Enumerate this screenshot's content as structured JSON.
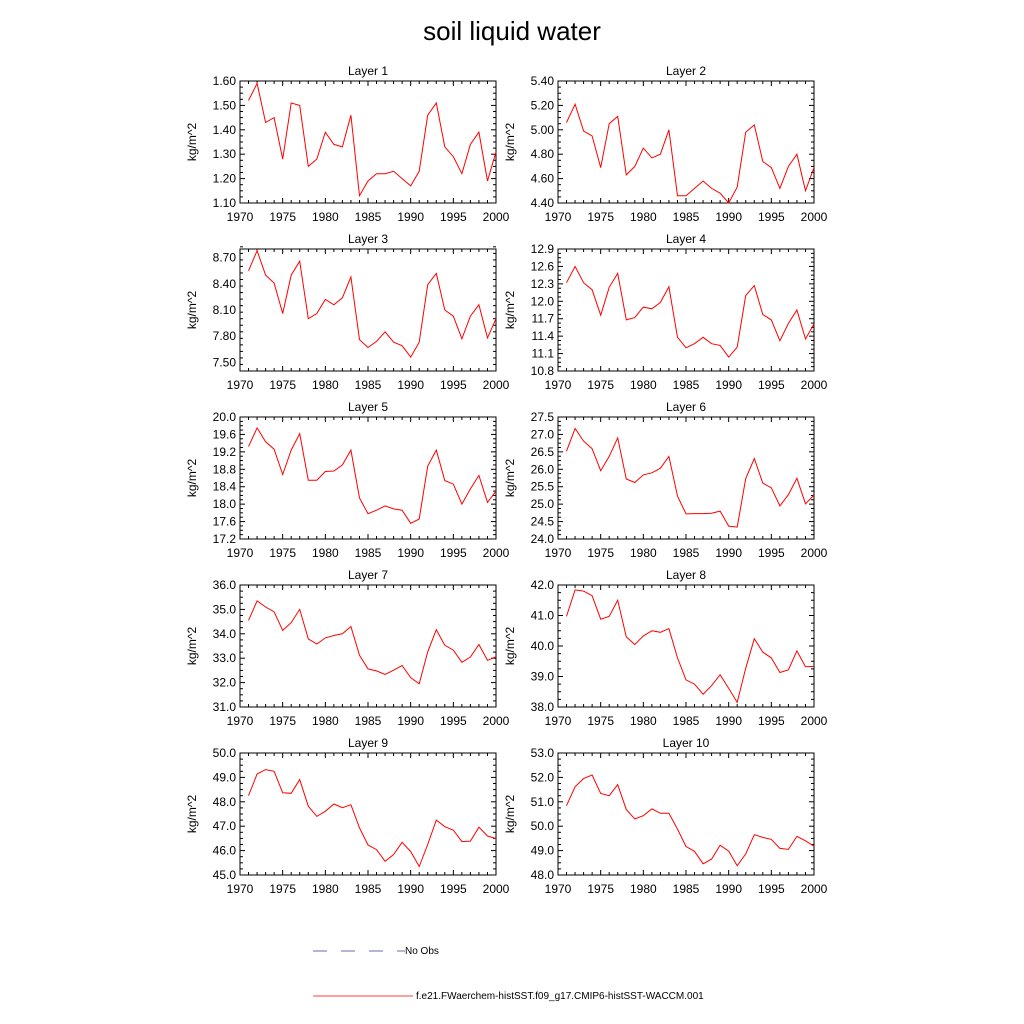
{
  "title": "soil liquid water",
  "colors": {
    "model_line": "#ff0000",
    "obs_line": "#3a3aa0",
    "axis": "#000000"
  },
  "legend": [
    {
      "label": "No Obs",
      "style": "dashed",
      "color": "#3a3aa0"
    },
    {
      "label": "f.e21.FWaerchem-histSST.f09_g17.CMIP6-histSST-WACCM.001",
      "style": "solid",
      "color": "#ff0000"
    }
  ],
  "chart_data": [
    {
      "type": "line",
      "title": "Layer 1",
      "ylabel": "kg/m^2",
      "xlim": [
        1970,
        2000
      ],
      "ylim": [
        1.1,
        1.6
      ],
      "xticks": [
        1970,
        1975,
        1980,
        1985,
        1990,
        1995,
        2000
      ],
      "yticks": [
        "1.10",
        "1.20",
        "1.30",
        "1.40",
        "1.50",
        "1.60"
      ],
      "series": [
        {
          "x": [
            1971,
            1972,
            1973,
            1974,
            1975,
            1976,
            1977,
            1978,
            1979,
            1980,
            1981,
            1982,
            1983,
            1984,
            1985,
            1986,
            1987,
            1988,
            1989,
            1990,
            1991,
            1992,
            1993,
            1994,
            1995,
            1996,
            1997,
            1998,
            1999,
            2000
          ],
          "values": [
            1.52,
            1.59,
            1.43,
            1.45,
            1.28,
            1.51,
            1.5,
            1.25,
            1.28,
            1.39,
            1.34,
            1.33,
            1.46,
            1.13,
            1.19,
            1.22,
            1.22,
            1.23,
            1.2,
            1.17,
            1.23,
            1.46,
            1.51,
            1.33,
            1.29,
            1.22,
            1.34,
            1.39,
            1.19,
            1.31
          ]
        }
      ]
    },
    {
      "type": "line",
      "title": "Layer 2",
      "ylabel": "kg/m^2",
      "xlim": [
        1970,
        2000
      ],
      "ylim": [
        4.4,
        5.4
      ],
      "xticks": [
        1970,
        1975,
        1980,
        1985,
        1990,
        1995,
        2000
      ],
      "yticks": [
        "4.40",
        "4.60",
        "4.80",
        "5.00",
        "5.20",
        "5.40"
      ],
      "series": [
        {
          "x": [
            1971,
            1972,
            1973,
            1974,
            1975,
            1976,
            1977,
            1978,
            1979,
            1980,
            1981,
            1982,
            1983,
            1984,
            1985,
            1986,
            1987,
            1988,
            1989,
            1990,
            1991,
            1992,
            1993,
            1994,
            1995,
            1996,
            1997,
            1998,
            1999,
            2000
          ],
          "values": [
            5.06,
            5.21,
            4.99,
            4.95,
            4.69,
            5.05,
            5.11,
            4.63,
            4.7,
            4.85,
            4.77,
            4.8,
            5.0,
            4.46,
            4.46,
            4.52,
            4.58,
            4.52,
            4.48,
            4.4,
            4.53,
            4.98,
            5.04,
            4.74,
            4.69,
            4.52,
            4.7,
            4.8,
            4.5,
            4.69
          ]
        }
      ]
    },
    {
      "type": "line",
      "title": "Layer 3",
      "ylabel": "kg/m^2",
      "xlim": [
        1970,
        2000
      ],
      "ylim": [
        7.4,
        8.8
      ],
      "xticks": [
        1970,
        1975,
        1980,
        1985,
        1990,
        1995,
        2000
      ],
      "yticks": [
        "7.50",
        "7.80",
        "8.10",
        "8.40",
        "8.70"
      ],
      "series": [
        {
          "x": [
            1971,
            1972,
            1973,
            1974,
            1975,
            1976,
            1977,
            1978,
            1979,
            1980,
            1981,
            1982,
            1983,
            1984,
            1985,
            1986,
            1987,
            1988,
            1989,
            1990,
            1991,
            1992,
            1993,
            1994,
            1995,
            1996,
            1997,
            1998,
            1999,
            2000
          ],
          "values": [
            8.55,
            8.78,
            8.5,
            8.41,
            8.06,
            8.5,
            8.66,
            8.0,
            8.06,
            8.22,
            8.16,
            8.24,
            8.48,
            7.76,
            7.67,
            7.74,
            7.85,
            7.73,
            7.69,
            7.56,
            7.73,
            8.39,
            8.52,
            8.1,
            8.03,
            7.77,
            8.03,
            8.16,
            7.78,
            8.0
          ]
        }
      ]
    },
    {
      "type": "line",
      "title": "Layer 4",
      "ylabel": "kg/m^2",
      "xlim": [
        1970,
        2000
      ],
      "ylim": [
        10.8,
        12.9
      ],
      "xticks": [
        1970,
        1975,
        1980,
        1985,
        1990,
        1995,
        2000
      ],
      "yticks": [
        "10.8",
        "11.1",
        "11.4",
        "11.7",
        "12.0",
        "12.3",
        "12.6",
        "12.9"
      ],
      "series": [
        {
          "x": [
            1971,
            1972,
            1973,
            1974,
            1975,
            1976,
            1977,
            1978,
            1979,
            1980,
            1981,
            1982,
            1983,
            1984,
            1985,
            1986,
            1987,
            1988,
            1989,
            1990,
            1991,
            1992,
            1993,
            1994,
            1995,
            1996,
            1997,
            1998,
            1999,
            2000
          ],
          "values": [
            12.32,
            12.6,
            12.32,
            12.2,
            11.76,
            12.24,
            12.48,
            11.68,
            11.72,
            11.9,
            11.87,
            11.98,
            12.25,
            11.38,
            11.2,
            11.27,
            11.38,
            11.27,
            11.24,
            11.04,
            11.21,
            12.1,
            12.27,
            11.77,
            11.68,
            11.32,
            11.62,
            11.85,
            11.35,
            11.61
          ]
        }
      ]
    },
    {
      "type": "line",
      "title": "Layer 5",
      "ylabel": "kg/m^2",
      "xlim": [
        1970,
        2000
      ],
      "ylim": [
        17.2,
        20.0
      ],
      "xticks": [
        1970,
        1975,
        1980,
        1985,
        1990,
        1995,
        2000
      ],
      "yticks": [
        "17.2",
        "17.6",
        "18.0",
        "18.4",
        "18.8",
        "19.2",
        "19.6",
        "20.0"
      ],
      "series": [
        {
          "x": [
            1971,
            1972,
            1973,
            1974,
            1975,
            1976,
            1977,
            1978,
            1979,
            1980,
            1981,
            1982,
            1983,
            1984,
            1985,
            1986,
            1987,
            1988,
            1989,
            1990,
            1991,
            1992,
            1993,
            1994,
            1995,
            1996,
            1997,
            1998,
            1999,
            2000
          ],
          "values": [
            19.32,
            19.75,
            19.43,
            19.26,
            18.68,
            19.24,
            19.62,
            18.55,
            18.55,
            18.75,
            18.76,
            18.9,
            19.24,
            18.14,
            17.78,
            17.86,
            17.96,
            17.89,
            17.86,
            17.56,
            17.66,
            18.87,
            19.24,
            18.54,
            18.46,
            18.0,
            18.35,
            18.66,
            18.04,
            18.3
          ]
        }
      ]
    },
    {
      "type": "line",
      "title": "Layer 6",
      "ylabel": "kg/m^2",
      "xlim": [
        1970,
        2000
      ],
      "ylim": [
        24.0,
        27.5
      ],
      "xticks": [
        1970,
        1975,
        1980,
        1985,
        1990,
        1995,
        2000
      ],
      "yticks": [
        "24.0",
        "24.5",
        "25.0",
        "25.5",
        "26.0",
        "26.5",
        "27.0",
        "27.5"
      ],
      "series": [
        {
          "x": [
            1971,
            1972,
            1973,
            1974,
            1975,
            1976,
            1977,
            1978,
            1979,
            1980,
            1981,
            1982,
            1983,
            1984,
            1985,
            1986,
            1987,
            1988,
            1989,
            1990,
            1991,
            1992,
            1993,
            1994,
            1995,
            1996,
            1997,
            1998,
            1999,
            2000
          ],
          "values": [
            26.52,
            27.17,
            26.81,
            26.59,
            25.96,
            26.37,
            26.9,
            25.72,
            25.62,
            25.84,
            25.9,
            26.03,
            26.37,
            25.23,
            24.72,
            24.73,
            24.73,
            24.74,
            24.8,
            24.37,
            24.34,
            25.73,
            26.31,
            25.6,
            25.47,
            24.95,
            25.27,
            25.74,
            25.01,
            25.26
          ]
        }
      ]
    },
    {
      "type": "line",
      "title": "Layer 7",
      "ylabel": "kg/m^2",
      "xlim": [
        1970,
        2000
      ],
      "ylim": [
        31.0,
        36.0
      ],
      "xticks": [
        1970,
        1975,
        1980,
        1985,
        1990,
        1995,
        2000
      ],
      "yticks": [
        "31.0",
        "32.0",
        "33.0",
        "34.0",
        "35.0",
        "36.0"
      ],
      "series": [
        {
          "x": [
            1971,
            1972,
            1973,
            1974,
            1975,
            1976,
            1977,
            1978,
            1979,
            1980,
            1981,
            1982,
            1983,
            1984,
            1985,
            1986,
            1987,
            1988,
            1989,
            1990,
            1991,
            1992,
            1993,
            1994,
            1995,
            1996,
            1997,
            1998,
            1999,
            2000
          ],
          "values": [
            34.55,
            35.35,
            35.1,
            34.9,
            34.14,
            34.46,
            35.0,
            33.79,
            33.58,
            33.83,
            33.93,
            34.0,
            34.3,
            33.12,
            32.56,
            32.48,
            32.33,
            32.51,
            32.7,
            32.2,
            31.95,
            33.26,
            34.17,
            33.53,
            33.33,
            32.83,
            33.05,
            33.56,
            32.91,
            33.06
          ]
        }
      ]
    },
    {
      "type": "line",
      "title": "Layer 8",
      "ylabel": "kg/m^2",
      "xlim": [
        1970,
        2000
      ],
      "ylim": [
        38.0,
        42.0
      ],
      "xticks": [
        1970,
        1975,
        1980,
        1985,
        1990,
        1995,
        2000
      ],
      "yticks": [
        "38.0",
        "39.0",
        "40.0",
        "41.0",
        "42.0"
      ],
      "series": [
        {
          "x": [
            1971,
            1972,
            1973,
            1974,
            1975,
            1976,
            1977,
            1978,
            1979,
            1980,
            1981,
            1982,
            1983,
            1984,
            1985,
            1986,
            1987,
            1988,
            1989,
            1990,
            1991,
            1992,
            1993,
            1994,
            1995,
            1996,
            1997,
            1998,
            1999,
            2000
          ],
          "values": [
            40.97,
            41.84,
            41.8,
            41.65,
            40.88,
            40.97,
            41.5,
            40.3,
            40.05,
            40.33,
            40.5,
            40.45,
            40.57,
            39.61,
            38.89,
            38.75,
            38.42,
            38.7,
            39.06,
            38.61,
            38.15,
            39.27,
            40.24,
            39.8,
            39.61,
            39.13,
            39.22,
            39.84,
            39.32,
            39.33
          ]
        }
      ]
    },
    {
      "type": "line",
      "title": "Layer 9",
      "ylabel": "kg/m^2",
      "xlim": [
        1970,
        2000
      ],
      "ylim": [
        45.0,
        50.0
      ],
      "xticks": [
        1970,
        1975,
        1980,
        1985,
        1990,
        1995,
        2000
      ],
      "yticks": [
        "45.0",
        "46.0",
        "47.0",
        "48.0",
        "49.0",
        "50.0"
      ],
      "series": [
        {
          "x": [
            1971,
            1972,
            1973,
            1974,
            1975,
            1976,
            1977,
            1978,
            1979,
            1980,
            1981,
            1982,
            1983,
            1984,
            1985,
            1986,
            1987,
            1988,
            1989,
            1990,
            1991,
            1992,
            1993,
            1994,
            1995,
            1996,
            1997,
            1998,
            1999,
            2000
          ],
          "values": [
            48.25,
            49.14,
            49.32,
            49.25,
            48.37,
            48.35,
            48.91,
            47.82,
            47.4,
            47.61,
            47.91,
            47.76,
            47.88,
            46.93,
            46.23,
            46.04,
            45.56,
            45.84,
            46.34,
            45.96,
            45.35,
            46.25,
            47.25,
            46.98,
            46.84,
            46.37,
            46.39,
            46.96,
            46.6,
            46.49
          ]
        }
      ]
    },
    {
      "type": "line",
      "title": "Layer 10",
      "ylabel": "kg/m^2",
      "xlim": [
        1970,
        2000
      ],
      "ylim": [
        48.0,
        53.0
      ],
      "xticks": [
        1970,
        1975,
        1980,
        1985,
        1990,
        1995,
        2000
      ],
      "yticks": [
        "48.0",
        "49.0",
        "50.0",
        "51.0",
        "52.0",
        "53.0"
      ],
      "series": [
        {
          "x": [
            1971,
            1972,
            1973,
            1974,
            1975,
            1976,
            1977,
            1978,
            1979,
            1980,
            1981,
            1982,
            1983,
            1984,
            1985,
            1986,
            1987,
            1988,
            1989,
            1990,
            1991,
            1992,
            1993,
            1994,
            1995,
            1996,
            1997,
            1998,
            1999,
            2000
          ],
          "values": [
            50.84,
            51.62,
            51.95,
            52.1,
            51.34,
            51.25,
            51.7,
            50.68,
            50.3,
            50.43,
            50.71,
            50.53,
            50.53,
            49.88,
            49.17,
            48.97,
            48.46,
            48.65,
            49.22,
            48.98,
            48.38,
            48.86,
            49.65,
            49.54,
            49.46,
            49.09,
            49.05,
            49.58,
            49.4,
            49.18
          ]
        }
      ]
    }
  ]
}
